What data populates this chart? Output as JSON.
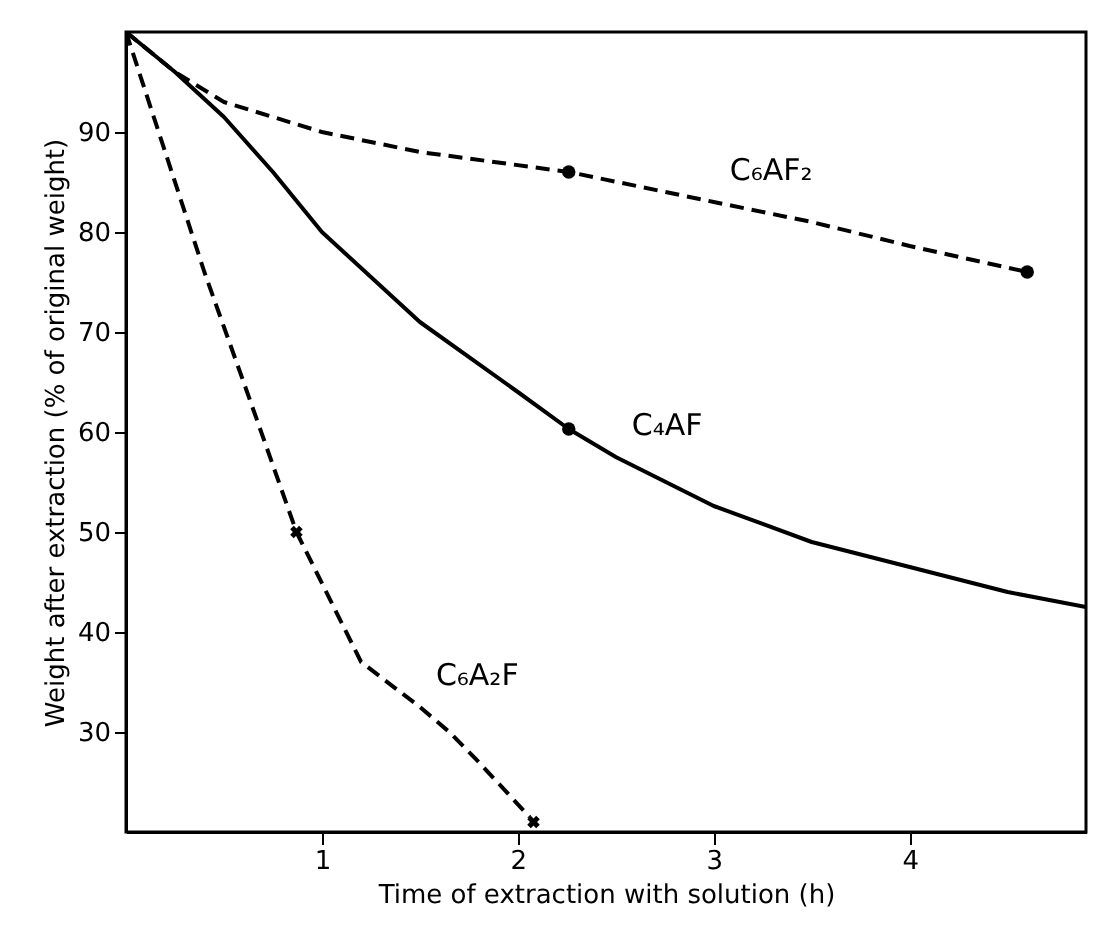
{
  "chart_data": {
    "type": "line",
    "xlabel": "Time of extraction with solution (h)",
    "ylabel": "Weight after extraction (% of original weight)",
    "xlim": [
      0,
      4.9
    ],
    "ylim": [
      20,
      100
    ],
    "xticks": [
      1,
      2,
      3,
      4
    ],
    "yticks": [
      30,
      40,
      50,
      60,
      70,
      80,
      90
    ],
    "grid": false,
    "series": [
      {
        "name": "C₆AF₂",
        "color": "#000000",
        "line_style": "dashed",
        "x": [
          0,
          0.25,
          0.5,
          1,
          1.5,
          2.26,
          3,
          3.5,
          4,
          4.6
        ],
        "values": [
          100,
          96,
          93,
          90,
          88,
          86,
          83,
          81,
          78.6,
          76
        ]
      },
      {
        "name": "C₄AF",
        "color": "#000000",
        "line_style": "solid",
        "x": [
          0,
          0.25,
          0.5,
          0.75,
          1,
          1.5,
          2,
          2.26,
          2.5,
          3,
          3.5,
          4,
          4.5,
          4.9
        ],
        "values": [
          100,
          96,
          91.5,
          86,
          80,
          71,
          64,
          60.3,
          57.5,
          52.6,
          49,
          46.5,
          44,
          42.5
        ]
      },
      {
        "name": "C₆A₂F",
        "color": "#000000",
        "line_style": "dashed",
        "x": [
          0,
          0.2,
          0.4,
          0.6,
          0.87,
          1.2,
          1.5,
          1.65,
          1.8,
          2.06
        ],
        "values": [
          100,
          88,
          76,
          65,
          50,
          37,
          32.5,
          30,
          27,
          21.5
        ]
      },
      {
        "type": "scatter",
        "marker": "circle",
        "color": "#000000",
        "x": [
          2.26,
          4.6
        ],
        "values": [
          86,
          76
        ]
      },
      {
        "type": "scatter",
        "marker": "circle",
        "color": "#000000",
        "x": [
          2.26
        ],
        "values": [
          60.3
        ]
      },
      {
        "type": "scatter",
        "marker": "cross",
        "color": "#000000",
        "x": [
          0.87,
          2.08
        ],
        "values": [
          50,
          21
        ]
      }
    ]
  }
}
